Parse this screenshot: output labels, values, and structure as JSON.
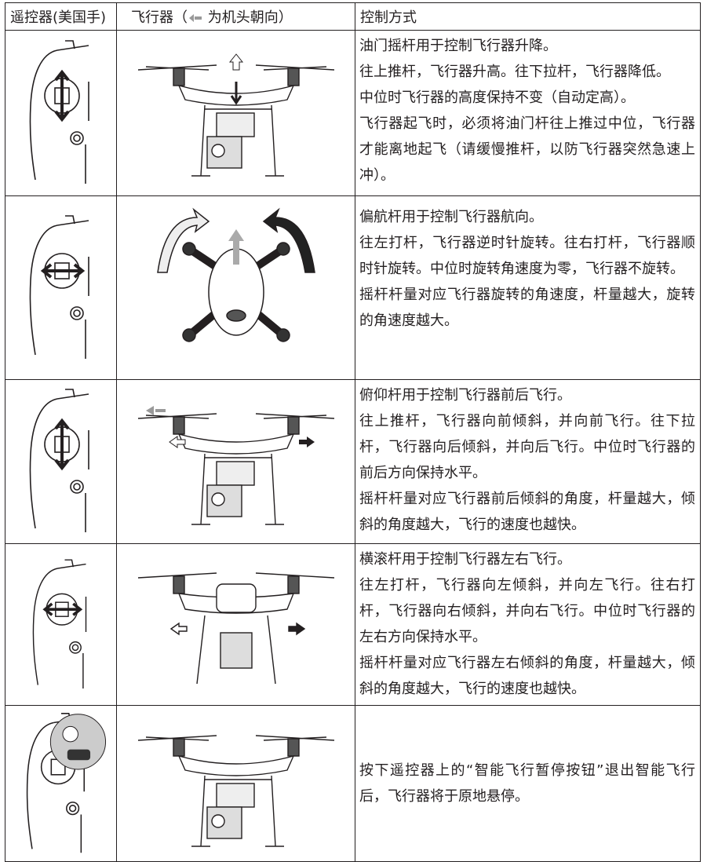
{
  "table": {
    "header": {
      "remote": "遥控器(美国手)",
      "aircraft_before": "飞行器（",
      "aircraft_after": "为机头朝向）",
      "control": "控制方式"
    },
    "rows": [
      {
        "lines": [
          "油门摇杆用于控制飞行器升降。",
          "往上推杆，飞行器升高。往下拉杆，飞行器降低。",
          "中位时飞行器的高度保持不变（自动定高）。",
          "飞行器起飞时，必须将油门杆往上推过中位，飞行器才能离地起飞（请缓慢推杆，以防飞行器突然急速上冲）。"
        ]
      },
      {
        "lines": [
          "偏航杆用于控制飞行器航向。",
          "往左打杆，飞行器逆时针旋转。往右打杆，飞行器顺时针旋转。中位时旋转角速度为零，飞行器不旋转。",
          "摇杆杆量对应飞行器旋转的角速度，杆量越大，旋转的角速度越大。"
        ]
      },
      {
        "lines": [
          "俯仰杆用于控制飞行器前后飞行。",
          "往上推杆，飞行器向前倾斜，并向前飞行。往下拉杆，飞行器向后倾斜，并向后飞行。中位时飞行器的前后方向保持水平。",
          "摇杆杆量对应飞行器前后倾斜的角度，杆量越大，倾斜的角度越大，飞行的速度也越快。"
        ]
      },
      {
        "lines": [
          "横滚杆用于控制飞行器左右飞行。",
          "往左打杆，飞行器向左倾斜，并向左飞行。往右打杆，飞行器向右倾斜，并向右飞行。中位时飞行器的左右方向保持水平。",
          "摇杆杆量对应飞行器左右倾斜的角度，杆量越大，倾斜的角度越大，飞行的速度也越快。"
        ]
      },
      {
        "lines": [
          "按下遥控器上的“智能飞行暂停按钮”退出智能飞行后，飞行器将于原地悬停。"
        ]
      }
    ]
  }
}
